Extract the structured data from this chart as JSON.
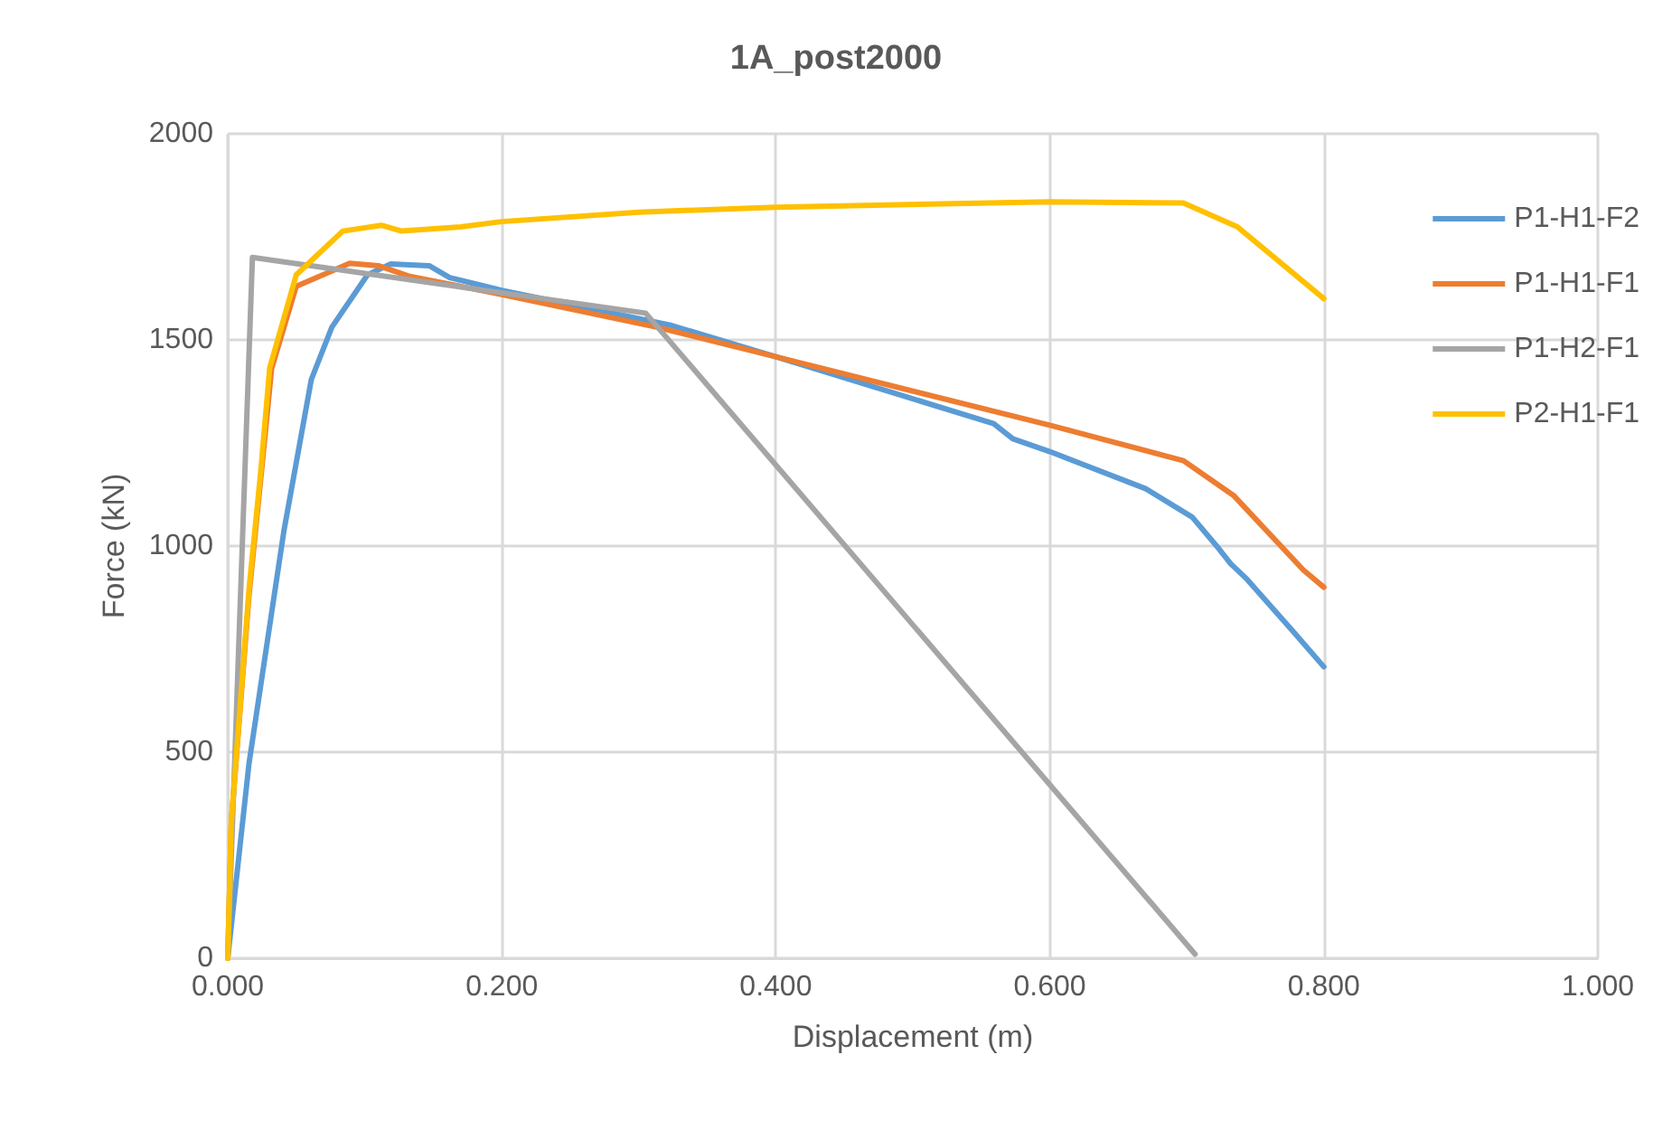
{
  "chart_data": {
    "type": "line",
    "title": "1A_post2000",
    "xlabel": "Displacement (m)",
    "ylabel": "Force (kN)",
    "xlim": [
      0,
      1
    ],
    "xticks": [
      {
        "value": 0,
        "label": "0.000"
      },
      {
        "value": 0.2,
        "label": "0.200"
      },
      {
        "value": 0.4,
        "label": "0.400"
      },
      {
        "value": 0.6,
        "label": "0.600"
      },
      {
        "value": 0.8,
        "label": "0.800"
      },
      {
        "value": 1,
        "label": "1.000"
      }
    ],
    "ylim": [
      0,
      2000
    ],
    "yticks": [
      0,
      500,
      1000,
      1500,
      2000
    ],
    "grid": true,
    "legend": "top right",
    "marker": "none",
    "line_style": "solid",
    "series": [
      {
        "name": "P1-H1-F2",
        "color": "#5b9bd5",
        "x": [
          0,
          0.0155,
          0.041,
          0.061,
          0.076,
          0.102,
          0.119,
          0.147,
          0.162,
          0.2,
          0.324,
          0.4,
          0.559,
          0.573,
          0.6,
          0.67,
          0.704,
          0.723,
          0.732,
          0.744,
          0.778,
          0.8
        ],
        "values": [
          0,
          472,
          1037,
          1404,
          1531,
          1658,
          1684,
          1680,
          1651,
          1620,
          1535,
          1459,
          1297,
          1260,
          1229,
          1139,
          1070,
          995,
          957,
          919,
          791,
          707
        ]
      },
      {
        "name": "P1-H1-F1",
        "color": "#ed7d31",
        "x": [
          0,
          0.0026,
          0.0155,
          0.024,
          0.032,
          0.05,
          0.089,
          0.11,
          0.132,
          0.2,
          0.313,
          0.4,
          0.6,
          0.6975,
          0.734,
          0.785,
          0.8
        ],
        "values": [
          0,
          330,
          880,
          1160,
          1430,
          1630,
          1686,
          1680,
          1655,
          1610,
          1531,
          1459,
          1293,
          1207,
          1123,
          942,
          900
        ]
      },
      {
        "name": "P1-H2-F1",
        "color": "#a5a5a5",
        "x": [
          0,
          0.018,
          0.305,
          0.706
        ],
        "values": [
          0,
          1700,
          1565,
          10
        ]
      },
      {
        "name": "P2-H1-F1",
        "color": "#ffc000",
        "x": [
          0,
          0.0026,
          0.0155,
          0.024,
          0.0306,
          0.05,
          0.084,
          0.112,
          0.127,
          0.17,
          0.2,
          0.3,
          0.4,
          0.6,
          0.6975,
          0.737,
          0.8
        ],
        "values": [
          0,
          330,
          895,
          1178,
          1432,
          1658,
          1764,
          1778,
          1764,
          1774,
          1787,
          1810,
          1822,
          1835,
          1832,
          1774,
          1600
        ]
      }
    ]
  }
}
